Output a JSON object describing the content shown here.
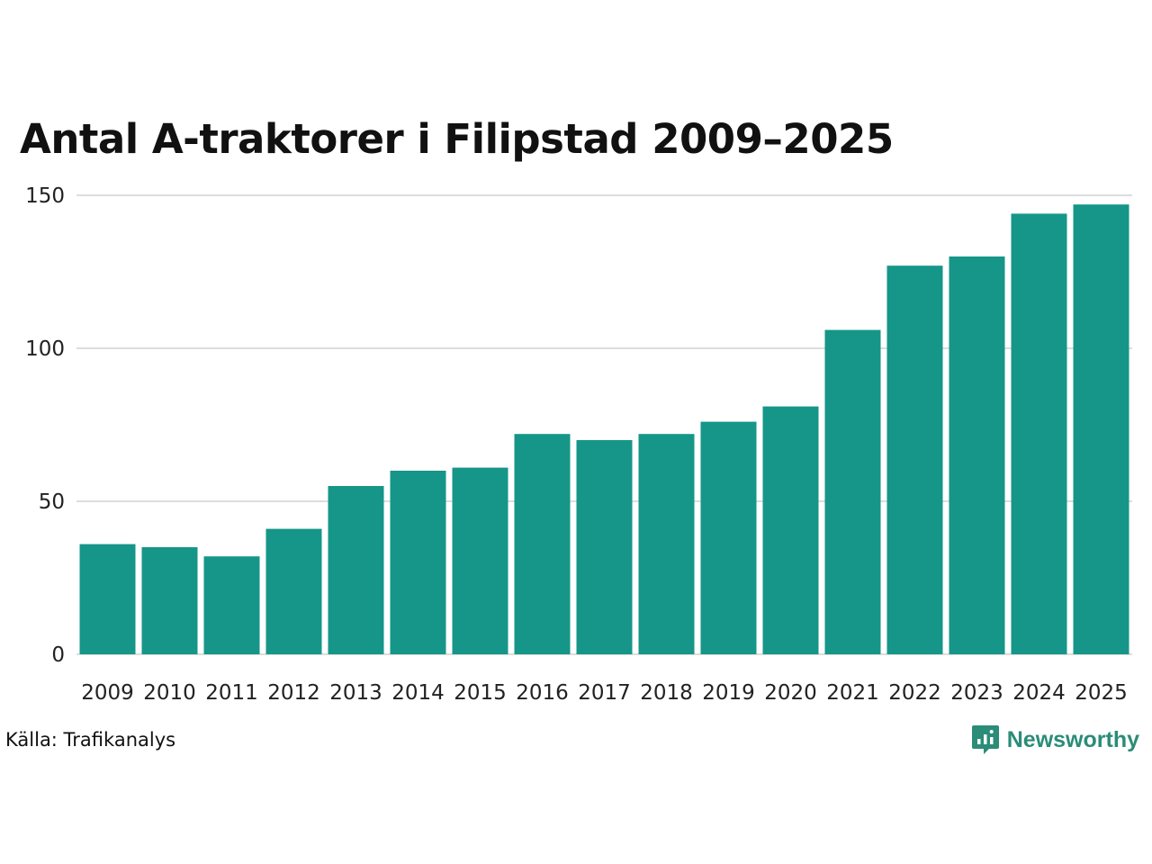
{
  "chart_data": {
    "type": "bar",
    "title": "Antal A-traktorer i Filipstad 2009–2025",
    "categories": [
      "2009",
      "2010",
      "2011",
      "2012",
      "2013",
      "2014",
      "2015",
      "2016",
      "2017",
      "2018",
      "2019",
      "2020",
      "2021",
      "2022",
      "2023",
      "2024",
      "2025"
    ],
    "values": [
      36,
      35,
      32,
      41,
      55,
      60,
      61,
      72,
      70,
      72,
      76,
      81,
      106,
      127,
      130,
      144,
      147
    ],
    "xlabel": "",
    "ylabel": "",
    "ylim": [
      0,
      150
    ],
    "yticks": [
      0,
      50,
      100,
      150
    ],
    "grid": true,
    "bar_color": "#159688",
    "grid_color": "#dddddd"
  },
  "footer": {
    "source": "Källa: Trafikanalys",
    "brand": "Newsworthy",
    "brand_color": "#2b8c78"
  }
}
